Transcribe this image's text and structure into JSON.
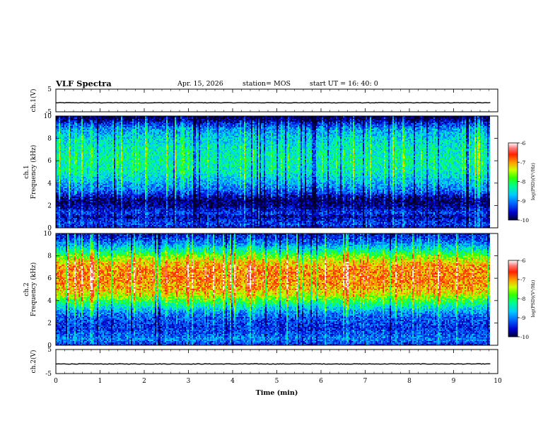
{
  "header": {
    "title": "VLF Spectra",
    "date": "Apr. 15, 2026",
    "station": "station= MOS",
    "start": "start  UT  =   16: 40: 0"
  },
  "colors": {
    "colormap": [
      "#000033",
      "#0000cc",
      "#0066ff",
      "#00ccff",
      "#00ff88",
      "#33ff00",
      "#ccff00",
      "#ffcc00",
      "#ff3300",
      "#ff5555",
      "#ffffff"
    ]
  },
  "chart_data": [
    {
      "type": "line",
      "panel": "ch1-waveform",
      "ylabel": "ch.1(V)",
      "ylim": [
        -5,
        5
      ],
      "yticks": [
        5,
        -5
      ],
      "xlim": [
        0,
        10
      ],
      "series": [
        {
          "x": [
            0,
            9.83
          ],
          "values": [
            -1,
            -1
          ]
        }
      ]
    },
    {
      "type": "heatmap",
      "panel": "ch1-spectrogram",
      "ylabel": "ch.1\nFrequency (kHz)",
      "yticks": [
        0,
        2,
        4,
        6,
        8,
        10
      ],
      "ylim": [
        0,
        10
      ],
      "xlim": [
        0,
        10
      ],
      "data_extent_min": 9.83,
      "colorbar": {
        "label": "log(PSD)(V²/Hz)",
        "ticks": [
          -6,
          -7,
          -8,
          -9,
          -10
        ],
        "range": [
          -10,
          -6
        ]
      },
      "profile": [
        {
          "f": 0.0,
          "level": -9.6
        },
        {
          "f": 0.3,
          "level": -9.3
        },
        {
          "f": 0.6,
          "level": -9.4
        },
        {
          "f": 1.0,
          "level": -9.7
        },
        {
          "f": 1.3,
          "level": -9.3
        },
        {
          "f": 1.7,
          "level": -9.6
        },
        {
          "f": 2.0,
          "level": -9.8
        },
        {
          "f": 2.4,
          "level": -9.9
        },
        {
          "f": 2.8,
          "level": -9.7
        },
        {
          "f": 3.2,
          "level": -9.2
        },
        {
          "f": 4.0,
          "level": -8.8
        },
        {
          "f": 5.0,
          "level": -8.4
        },
        {
          "f": 6.0,
          "level": -8.3
        },
        {
          "f": 7.0,
          "level": -8.4
        },
        {
          "f": 8.0,
          "level": -8.6
        },
        {
          "f": 8.8,
          "level": -8.9
        },
        {
          "f": 9.3,
          "level": -9.4
        },
        {
          "f": 9.7,
          "level": -9.9
        },
        {
          "f": 10.0,
          "level": -10.0
        }
      ]
    },
    {
      "type": "heatmap",
      "panel": "ch2-spectrogram",
      "ylabel": "ch.2\nFrequency (kHz)",
      "yticks": [
        0,
        2,
        4,
        6,
        8,
        10
      ],
      "ylim": [
        0,
        10
      ],
      "xlim": [
        0,
        10
      ],
      "data_extent_min": 9.83,
      "colorbar": {
        "label": "log(PSD)(V²/Hz)",
        "ticks": [
          -6,
          -7,
          -8,
          -9,
          -10
        ],
        "range": [
          -10,
          -6
        ]
      },
      "profile": [
        {
          "f": 0.0,
          "level": -9.5
        },
        {
          "f": 0.5,
          "level": -9.0
        },
        {
          "f": 1.0,
          "level": -9.2
        },
        {
          "f": 1.5,
          "level": -9.4
        },
        {
          "f": 2.0,
          "level": -9.3
        },
        {
          "f": 2.5,
          "level": -9.2
        },
        {
          "f": 3.0,
          "level": -8.9
        },
        {
          "f": 3.5,
          "level": -8.4
        },
        {
          "f": 4.0,
          "level": -7.9
        },
        {
          "f": 4.5,
          "level": -7.4
        },
        {
          "f": 5.0,
          "level": -7.1
        },
        {
          "f": 6.0,
          "level": -6.9
        },
        {
          "f": 7.0,
          "level": -7.0
        },
        {
          "f": 7.5,
          "level": -7.3
        },
        {
          "f": 8.0,
          "level": -7.8
        },
        {
          "f": 8.5,
          "level": -8.4
        },
        {
          "f": 9.0,
          "level": -8.9
        },
        {
          "f": 9.5,
          "level": -9.3
        },
        {
          "f": 10.0,
          "level": -9.6
        }
      ]
    },
    {
      "type": "line",
      "panel": "ch2-waveform",
      "ylabel": "ch.2(V)",
      "ylim": [
        -5,
        5
      ],
      "yticks": [
        5,
        -5
      ],
      "xlim": [
        0,
        10
      ],
      "xlabel": "Time  (min)",
      "xticks": [
        0,
        1,
        2,
        3,
        4,
        5,
        6,
        7,
        8,
        9,
        10
      ],
      "series": [
        {
          "x": [
            0,
            9.83
          ],
          "values": [
            -1,
            -1
          ]
        }
      ]
    }
  ]
}
